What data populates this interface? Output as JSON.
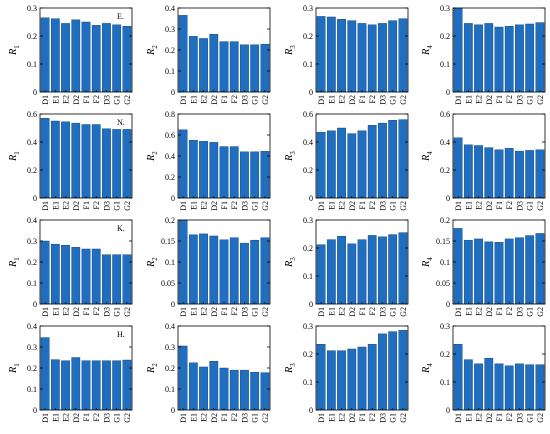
{
  "colors": {
    "bar": "#1f6ebf",
    "axis": "#000000",
    "background": "#ffffff"
  },
  "categories": [
    "D1",
    "E1",
    "E2",
    "D2",
    "F1",
    "F2",
    "D3",
    "G1",
    "G2"
  ],
  "chart_data": [
    {
      "type": "bar",
      "row": 0,
      "col": 0,
      "panel_label": "E.",
      "ylabel": "R",
      "ylabel_sub": "1",
      "ylim": [
        0,
        0.3
      ],
      "yticks": [
        "0",
        "0.1",
        "0.2",
        "0.3"
      ],
      "categories": [
        "D1",
        "E1",
        "E2",
        "D2",
        "F1",
        "F2",
        "D3",
        "G1",
        "G2"
      ],
      "values": [
        0.265,
        0.262,
        0.245,
        0.258,
        0.25,
        0.238,
        0.245,
        0.24,
        0.235
      ]
    },
    {
      "type": "bar",
      "row": 0,
      "col": 1,
      "panel_label": "",
      "ylabel": "R",
      "ylabel_sub": "2",
      "ylim": [
        0,
        0.4
      ],
      "yticks": [
        "0",
        "0.1",
        "0.2",
        "0.3",
        "0.4"
      ],
      "categories": [
        "D1",
        "E1",
        "E2",
        "D2",
        "F1",
        "F2",
        "D3",
        "G1",
        "G2"
      ],
      "values": [
        0.365,
        0.265,
        0.255,
        0.275,
        0.24,
        0.24,
        0.225,
        0.225,
        0.228
      ]
    },
    {
      "type": "bar",
      "row": 0,
      "col": 2,
      "panel_label": "",
      "ylabel": "R",
      "ylabel_sub": "3",
      "ylim": [
        0,
        0.3
      ],
      "yticks": [
        "0",
        "0.1",
        "0.2",
        "0.3"
      ],
      "categories": [
        "D1",
        "E1",
        "E2",
        "D2",
        "F1",
        "F2",
        "D3",
        "G1",
        "G2"
      ],
      "values": [
        0.27,
        0.268,
        0.26,
        0.255,
        0.245,
        0.24,
        0.245,
        0.255,
        0.262
      ]
    },
    {
      "type": "bar",
      "row": 0,
      "col": 3,
      "panel_label": "",
      "ylabel": "R",
      "ylabel_sub": "4",
      "ylim": [
        0,
        0.3
      ],
      "yticks": [
        "0",
        "0.1",
        "0.2",
        "0.3"
      ],
      "categories": [
        "D1",
        "E1",
        "E2",
        "D2",
        "F1",
        "F2",
        "D3",
        "G1",
        "G2"
      ],
      "values": [
        0.3,
        0.245,
        0.24,
        0.245,
        0.232,
        0.235,
        0.24,
        0.243,
        0.248
      ]
    },
    {
      "type": "bar",
      "row": 1,
      "col": 0,
      "panel_label": "N.",
      "ylabel": "R",
      "ylabel_sub": "1",
      "ylim": [
        0,
        0.6
      ],
      "yticks": [
        "0",
        "0.2",
        "0.4",
        "0.6"
      ],
      "categories": [
        "D1",
        "E1",
        "E2",
        "D2",
        "F1",
        "F2",
        "D3",
        "G1",
        "G2"
      ],
      "values": [
        0.57,
        0.55,
        0.545,
        0.535,
        0.525,
        0.525,
        0.495,
        0.49,
        0.49
      ]
    },
    {
      "type": "bar",
      "row": 1,
      "col": 1,
      "panel_label": "",
      "ylabel": "R",
      "ylabel_sub": "2",
      "ylim": [
        0,
        0.8
      ],
      "yticks": [
        "0",
        "0.2",
        "0.4",
        "0.6",
        "0.8"
      ],
      "categories": [
        "D1",
        "E1",
        "E2",
        "D2",
        "F1",
        "F2",
        "D3",
        "G1",
        "G2"
      ],
      "values": [
        0.65,
        0.55,
        0.54,
        0.53,
        0.49,
        0.49,
        0.44,
        0.44,
        0.445
      ]
    },
    {
      "type": "bar",
      "row": 1,
      "col": 2,
      "panel_label": "",
      "ylabel": "R",
      "ylabel_sub": "3",
      "ylim": [
        0,
        0.6
      ],
      "yticks": [
        "0",
        "0.2",
        "0.4",
        "0.6"
      ],
      "categories": [
        "D1",
        "E1",
        "E2",
        "D2",
        "F1",
        "F2",
        "D3",
        "G1",
        "G2"
      ],
      "values": [
        0.47,
        0.48,
        0.5,
        0.46,
        0.48,
        0.52,
        0.535,
        0.555,
        0.56
      ]
    },
    {
      "type": "bar",
      "row": 1,
      "col": 3,
      "panel_label": "",
      "ylabel": "R",
      "ylabel_sub": "4",
      "ylim": [
        0,
        0.6
      ],
      "yticks": [
        "0",
        "0.2",
        "0.4",
        "0.6"
      ],
      "categories": [
        "D1",
        "E1",
        "E2",
        "D2",
        "F1",
        "F2",
        "D3",
        "G1",
        "G2"
      ],
      "values": [
        0.43,
        0.38,
        0.375,
        0.36,
        0.345,
        0.355,
        0.335,
        0.34,
        0.345
      ]
    },
    {
      "type": "bar",
      "row": 2,
      "col": 0,
      "panel_label": "K.",
      "ylabel": "R",
      "ylabel_sub": "1",
      "ylim": [
        0,
        0.4
      ],
      "yticks": [
        "0",
        "0.1",
        "0.2",
        "0.3",
        "0.4"
      ],
      "categories": [
        "D1",
        "E1",
        "E2",
        "D2",
        "F1",
        "F2",
        "D3",
        "G1",
        "G2"
      ],
      "values": [
        0.3,
        0.285,
        0.28,
        0.27,
        0.262,
        0.262,
        0.235,
        0.235,
        0.235
      ]
    },
    {
      "type": "bar",
      "row": 2,
      "col": 1,
      "panel_label": "",
      "ylabel": "R",
      "ylabel_sub": "2",
      "ylim": [
        0,
        0.2
      ],
      "yticks": [
        "0",
        "0.05",
        "0.1",
        "0.15",
        "0.2"
      ],
      "categories": [
        "D1",
        "E1",
        "E2",
        "D2",
        "F1",
        "F2",
        "D3",
        "G1",
        "G2"
      ],
      "values": [
        0.22,
        0.165,
        0.167,
        0.162,
        0.153,
        0.158,
        0.145,
        0.152,
        0.158
      ]
    },
    {
      "type": "bar",
      "row": 2,
      "col": 2,
      "panel_label": "",
      "ylabel": "R",
      "ylabel_sub": "3",
      "ylim": [
        0,
        0.3
      ],
      "yticks": [
        "0",
        "0.1",
        "0.2",
        "0.3"
      ],
      "categories": [
        "D1",
        "E1",
        "E2",
        "D2",
        "F1",
        "F2",
        "D3",
        "G1",
        "G2"
      ],
      "values": [
        0.212,
        0.23,
        0.242,
        0.215,
        0.23,
        0.245,
        0.24,
        0.248,
        0.255
      ]
    },
    {
      "type": "bar",
      "row": 2,
      "col": 3,
      "panel_label": "",
      "ylabel": "R",
      "ylabel_sub": "4",
      "ylim": [
        0,
        0.2
      ],
      "yticks": [
        "0",
        "0.05",
        "0.1",
        "0.15",
        "0.2"
      ],
      "categories": [
        "D1",
        "E1",
        "E2",
        "D2",
        "F1",
        "F2",
        "D3",
        "G1",
        "G2"
      ],
      "values": [
        0.18,
        0.152,
        0.155,
        0.148,
        0.147,
        0.155,
        0.158,
        0.163,
        0.168
      ]
    },
    {
      "type": "bar",
      "row": 3,
      "col": 0,
      "panel_label": "H.",
      "ylabel": "R",
      "ylabel_sub": "1",
      "ylim": [
        0,
        0.4
      ],
      "yticks": [
        "0",
        "0.1",
        "0.2",
        "0.3",
        "0.4"
      ],
      "categories": [
        "D1",
        "E1",
        "E2",
        "D2",
        "F1",
        "F2",
        "D3",
        "G1",
        "G2"
      ],
      "values": [
        0.345,
        0.24,
        0.235,
        0.25,
        0.235,
        0.235,
        0.235,
        0.235,
        0.238
      ]
    },
    {
      "type": "bar",
      "row": 3,
      "col": 1,
      "panel_label": "",
      "ylabel": "R",
      "ylabel_sub": "2",
      "ylim": [
        0,
        0.4
      ],
      "yticks": [
        "0",
        "0.1",
        "0.2",
        "0.3",
        "0.4"
      ],
      "categories": [
        "D1",
        "E1",
        "E2",
        "D2",
        "F1",
        "F2",
        "D3",
        "G1",
        "G2"
      ],
      "values": [
        0.305,
        0.225,
        0.205,
        0.232,
        0.2,
        0.19,
        0.19,
        0.18,
        0.178
      ]
    },
    {
      "type": "bar",
      "row": 3,
      "col": 2,
      "panel_label": "",
      "ylabel": "R",
      "ylabel_sub": "3",
      "ylim": [
        0,
        0.3
      ],
      "yticks": [
        "0",
        "0.1",
        "0.2",
        "0.3"
      ],
      "categories": [
        "D1",
        "E1",
        "E2",
        "D2",
        "F1",
        "F2",
        "D3",
        "G1",
        "G2"
      ],
      "values": [
        0.235,
        0.212,
        0.212,
        0.218,
        0.225,
        0.235,
        0.272,
        0.28,
        0.285
      ]
    },
    {
      "type": "bar",
      "row": 3,
      "col": 3,
      "panel_label": "",
      "ylabel": "R",
      "ylabel_sub": "4",
      "ylim": [
        0,
        0.3
      ],
      "yticks": [
        "0",
        "0.1",
        "0.2",
        "0.3"
      ],
      "categories": [
        "D1",
        "E1",
        "E2",
        "D2",
        "F1",
        "F2",
        "D3",
        "G1",
        "G2"
      ],
      "values": [
        0.235,
        0.18,
        0.165,
        0.185,
        0.165,
        0.158,
        0.165,
        0.162,
        0.162
      ]
    }
  ]
}
